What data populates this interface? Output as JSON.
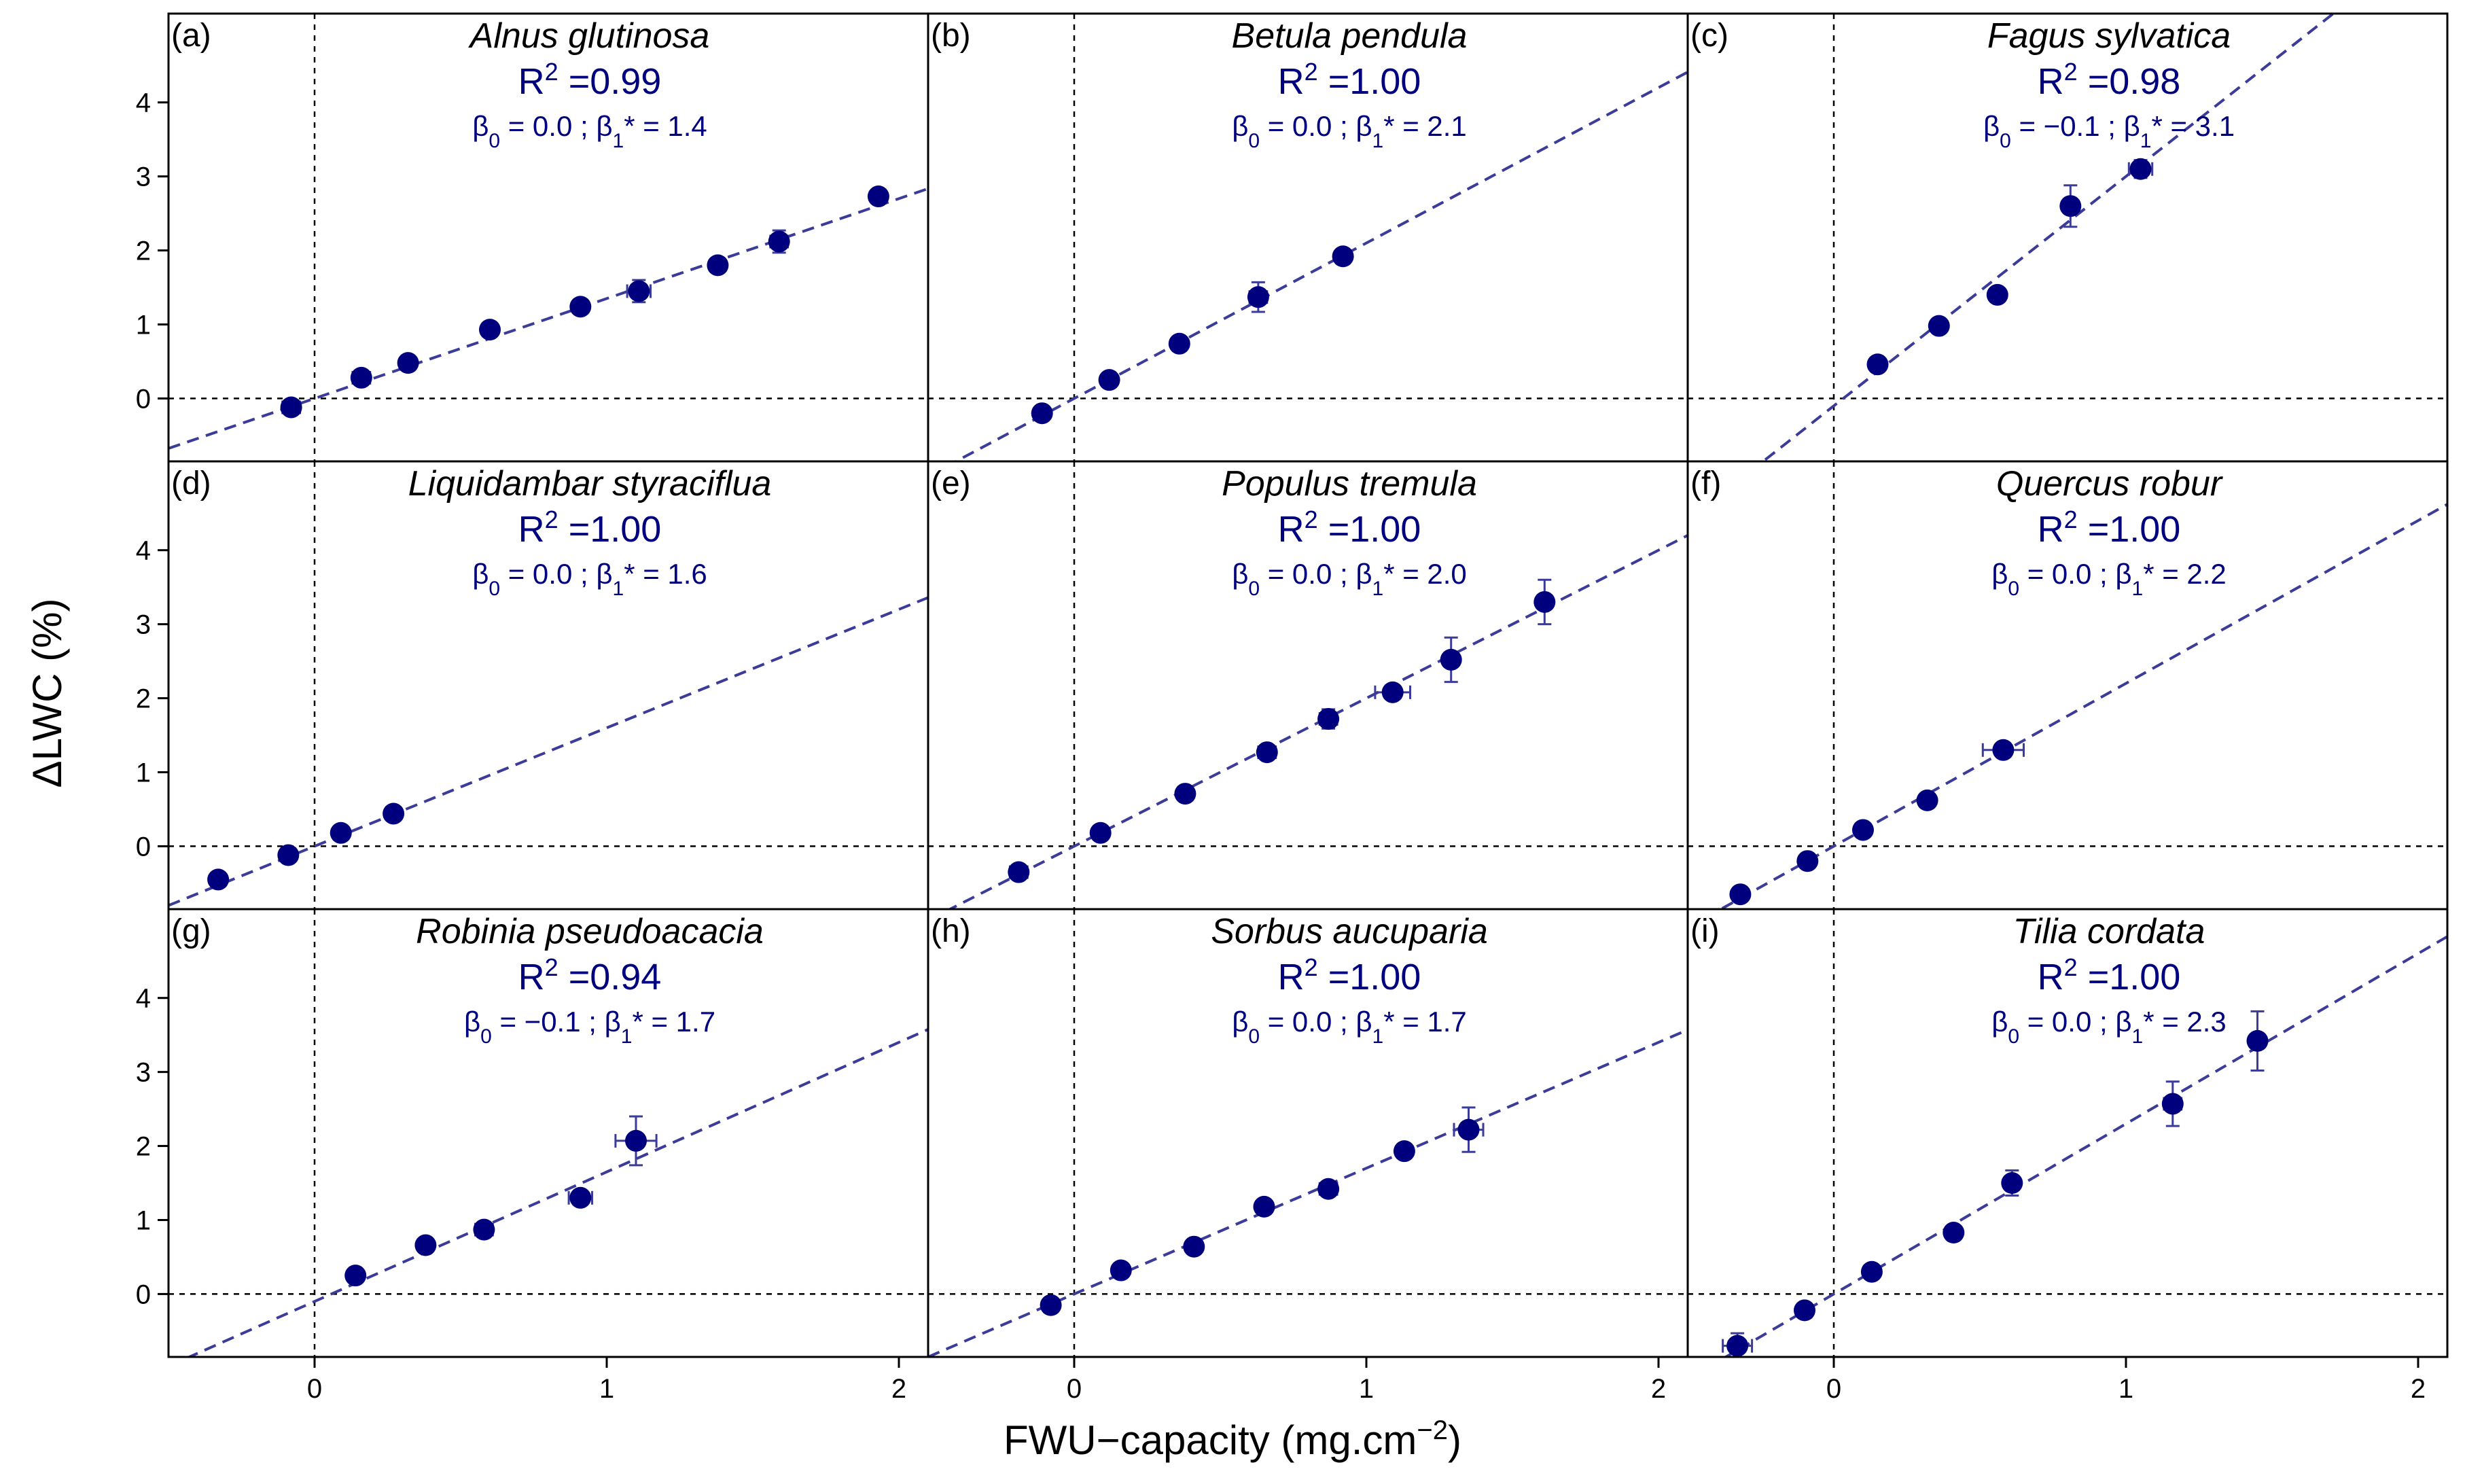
{
  "figure": {
    "ylabel": "ΔLWC (%)",
    "xlabel_main": "FWU−capacity (mg.cm",
    "xlabel_sup": "−2",
    "xlabel_end": ")",
    "xticks": [
      "0",
      "1",
      "2"
    ],
    "yticks": [
      "0",
      "1",
      "2",
      "3",
      "4"
    ],
    "colors": {
      "points": "#00007f",
      "fit_line": "#3b3b9a",
      "frame": "#000000",
      "reference_lines": "#000000"
    },
    "grid": false
  },
  "chart_data": [
    {
      "type": "scatter",
      "panel_label": "(a)",
      "title": "Alnus glutinosa",
      "r2": "0.99",
      "beta0": "0.0",
      "beta1": "1.4",
      "xlim": [
        -0.5,
        2.1
      ],
      "ylim": [
        -0.85,
        5.2
      ],
      "fit": {
        "intercept": 0.0,
        "slope": 1.35
      },
      "points": [
        {
          "x": -0.08,
          "y": -0.12,
          "xerr": 0.03,
          "yerr": 0.05
        },
        {
          "x": 0.16,
          "y": 0.28,
          "xerr": 0.03,
          "yerr": 0.05
        },
        {
          "x": 0.32,
          "y": 0.48,
          "xerr": 0.02,
          "yerr": 0.04
        },
        {
          "x": 0.6,
          "y": 0.93,
          "xerr": 0.02,
          "yerr": 0.05
        },
        {
          "x": 0.91,
          "y": 1.24,
          "xerr": 0.02,
          "yerr": 0.05
        },
        {
          "x": 1.11,
          "y": 1.45,
          "xerr": 0.04,
          "yerr": 0.15
        },
        {
          "x": 1.38,
          "y": 1.8,
          "xerr": 0.02,
          "yerr": 0.08
        },
        {
          "x": 1.59,
          "y": 2.12,
          "xerr": 0.03,
          "yerr": 0.15
        },
        {
          "x": 1.93,
          "y": 2.73,
          "xerr": 0.02,
          "yerr": 0.08
        }
      ]
    },
    {
      "type": "scatter",
      "panel_label": "(b)",
      "title": "Betula pendula",
      "r2": "1.00",
      "beta0": "0.0",
      "beta1": "2.1",
      "xlim": [
        -0.5,
        2.1
      ],
      "ylim": [
        -0.85,
        5.2
      ],
      "fit": {
        "intercept": 0.0,
        "slope": 2.1
      },
      "points": [
        {
          "x": -0.11,
          "y": -0.2,
          "xerr": 0.02,
          "yerr": 0.05
        },
        {
          "x": 0.12,
          "y": 0.25,
          "xerr": 0.02,
          "yerr": 0.05
        },
        {
          "x": 0.36,
          "y": 0.74,
          "xerr": 0.02,
          "yerr": 0.05
        },
        {
          "x": 0.63,
          "y": 1.37,
          "xerr": 0.03,
          "yerr": 0.2
        },
        {
          "x": 0.92,
          "y": 1.92,
          "xerr": 0.02,
          "yerr": 0.07
        }
      ]
    },
    {
      "type": "scatter",
      "panel_label": "(c)",
      "title": "Fagus sylvatica",
      "r2": "0.98",
      "beta0": "−0.1",
      "beta1": "3.1",
      "xlim": [
        -0.5,
        2.1
      ],
      "ylim": [
        -0.85,
        5.2
      ],
      "fit": {
        "intercept": -0.1,
        "slope": 3.1
      },
      "points": [
        {
          "x": 0.15,
          "y": 0.46,
          "xerr": 0.02,
          "yerr": 0.06
        },
        {
          "x": 0.36,
          "y": 0.98,
          "xerr": 0.02,
          "yerr": 0.05
        },
        {
          "x": 0.56,
          "y": 1.4,
          "xerr": 0.02,
          "yerr": 0.05
        },
        {
          "x": 0.81,
          "y": 2.6,
          "xerr": 0.02,
          "yerr": 0.28
        },
        {
          "x": 1.05,
          "y": 3.1,
          "xerr": 0.04,
          "yerr": 0.12
        }
      ]
    },
    {
      "type": "scatter",
      "panel_label": "(d)",
      "title": "Liquidambar styraciflua",
      "r2": "1.00",
      "beta0": "0.0",
      "beta1": "1.6",
      "xlim": [
        -0.5,
        2.1
      ],
      "ylim": [
        -0.85,
        5.2
      ],
      "fit": {
        "intercept": 0.0,
        "slope": 1.6
      },
      "points": [
        {
          "x": -0.33,
          "y": -0.45,
          "xerr": 0.02,
          "yerr": 0.05
        },
        {
          "x": -0.09,
          "y": -0.12,
          "xerr": 0.02,
          "yerr": 0.05
        },
        {
          "x": 0.09,
          "y": 0.18,
          "xerr": 0.02,
          "yerr": 0.05
        },
        {
          "x": 0.27,
          "y": 0.44,
          "xerr": 0.02,
          "yerr": 0.05
        }
      ]
    },
    {
      "type": "scatter",
      "panel_label": "(e)",
      "title": "Populus tremula",
      "r2": "1.00",
      "beta0": "0.0",
      "beta1": "2.0",
      "xlim": [
        -0.5,
        2.1
      ],
      "ylim": [
        -0.85,
        5.2
      ],
      "fit": {
        "intercept": 0.0,
        "slope": 2.0
      },
      "points": [
        {
          "x": -0.19,
          "y": -0.35,
          "xerr": 0.03,
          "yerr": 0.05
        },
        {
          "x": 0.09,
          "y": 0.18,
          "xerr": 0.02,
          "yerr": 0.05
        },
        {
          "x": 0.38,
          "y": 0.71,
          "xerr": 0.02,
          "yerr": 0.05
        },
        {
          "x": 0.66,
          "y": 1.27,
          "xerr": 0.03,
          "yerr": 0.07
        },
        {
          "x": 0.87,
          "y": 1.72,
          "xerr": 0.03,
          "yerr": 0.13
        },
        {
          "x": 1.09,
          "y": 2.08,
          "xerr": 0.06,
          "yerr": 0.07
        },
        {
          "x": 1.29,
          "y": 2.52,
          "xerr": 0.02,
          "yerr": 0.3
        },
        {
          "x": 1.61,
          "y": 3.3,
          "xerr": 0.02,
          "yerr": 0.3
        }
      ]
    },
    {
      "type": "scatter",
      "panel_label": "(f)",
      "title": "Quercus robur",
      "r2": "1.00",
      "beta0": "0.0",
      "beta1": "2.2",
      "xlim": [
        -0.5,
        2.1
      ],
      "ylim": [
        -0.85,
        5.2
      ],
      "fit": {
        "intercept": 0.0,
        "slope": 2.2
      },
      "points": [
        {
          "x": -0.32,
          "y": -0.65,
          "xerr": 0.02,
          "yerr": 0.05
        },
        {
          "x": -0.09,
          "y": -0.2,
          "xerr": 0.02,
          "yerr": 0.05
        },
        {
          "x": 0.1,
          "y": 0.22,
          "xerr": 0.02,
          "yerr": 0.05
        },
        {
          "x": 0.32,
          "y": 0.62,
          "xerr": 0.02,
          "yerr": 0.05
        },
        {
          "x": 0.58,
          "y": 1.3,
          "xerr": 0.07,
          "yerr": 0.05
        }
      ]
    },
    {
      "type": "scatter",
      "panel_label": "(g)",
      "title": "Robinia pseudoacacia",
      "r2": "0.94",
      "beta0": "−0.1",
      "beta1": "1.7",
      "xlim": [
        -0.5,
        2.1
      ],
      "ylim": [
        -0.85,
        5.2
      ],
      "fit": {
        "intercept": -0.1,
        "slope": 1.75
      },
      "points": [
        {
          "x": 0.14,
          "y": 0.25,
          "xerr": 0.02,
          "yerr": 0.05
        },
        {
          "x": 0.38,
          "y": 0.66,
          "xerr": 0.02,
          "yerr": 0.07
        },
        {
          "x": 0.58,
          "y": 0.87,
          "xerr": 0.03,
          "yerr": 0.07
        },
        {
          "x": 0.91,
          "y": 1.3,
          "xerr": 0.04,
          "yerr": 0.1
        },
        {
          "x": 1.1,
          "y": 2.07,
          "xerr": 0.07,
          "yerr": 0.33
        }
      ]
    },
    {
      "type": "scatter",
      "panel_label": "(h)",
      "title": "Sorbus aucuparia",
      "r2": "1.00",
      "beta0": "0.0",
      "beta1": "1.7",
      "xlim": [
        -0.5,
        2.1
      ],
      "ylim": [
        -0.85,
        5.2
      ],
      "fit": {
        "intercept": 0.0,
        "slope": 1.7
      },
      "points": [
        {
          "x": -0.08,
          "y": -0.15,
          "xerr": 0.02,
          "yerr": 0.05
        },
        {
          "x": 0.16,
          "y": 0.32,
          "xerr": 0.02,
          "yerr": 0.05
        },
        {
          "x": 0.41,
          "y": 0.64,
          "xerr": 0.02,
          "yerr": 0.05
        },
        {
          "x": 0.65,
          "y": 1.18,
          "xerr": 0.02,
          "yerr": 0.07
        },
        {
          "x": 0.87,
          "y": 1.42,
          "xerr": 0.03,
          "yerr": 0.07
        },
        {
          "x": 1.13,
          "y": 1.93,
          "xerr": 0.02,
          "yerr": 0.05
        },
        {
          "x": 1.35,
          "y": 2.22,
          "xerr": 0.05,
          "yerr": 0.3
        }
      ]
    },
    {
      "type": "scatter",
      "panel_label": "(i)",
      "title": "Tilia cordata",
      "r2": "1.00",
      "beta0": "0.0",
      "beta1": "2.3",
      "xlim": [
        -0.5,
        2.1
      ],
      "ylim": [
        -0.85,
        5.2
      ],
      "fit": {
        "intercept": 0.0,
        "slope": 2.3
      },
      "points": [
        {
          "x": -0.33,
          "y": -0.7,
          "xerr": 0.05,
          "yerr": 0.17
        },
        {
          "x": -0.1,
          "y": -0.22,
          "xerr": 0.02,
          "yerr": 0.05
        },
        {
          "x": 0.13,
          "y": 0.3,
          "xerr": 0.02,
          "yerr": 0.05
        },
        {
          "x": 0.41,
          "y": 0.83,
          "xerr": 0.02,
          "yerr": 0.07
        },
        {
          "x": 0.61,
          "y": 1.5,
          "xerr": 0.02,
          "yerr": 0.17
        },
        {
          "x": 1.16,
          "y": 2.57,
          "xerr": 0.03,
          "yerr": 0.3
        },
        {
          "x": 1.45,
          "y": 3.42,
          "xerr": 0.02,
          "yerr": 0.4
        }
      ]
    }
  ]
}
